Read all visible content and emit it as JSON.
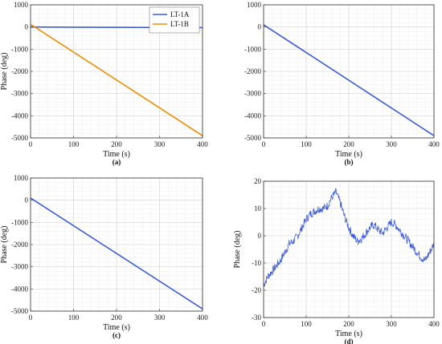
{
  "chart_data": [
    {
      "type": "line",
      "panel_label": "(a)",
      "xlabel": "Time (s)",
      "ylabel": "Phase (deg)",
      "xlim": [
        0,
        400
      ],
      "ylim": [
        -5000,
        1000
      ],
      "xticks": [
        0,
        100,
        200,
        300,
        400
      ],
      "yticks": [
        -5000,
        -4000,
        -3000,
        -2000,
        -1000,
        0,
        1000
      ],
      "grid": true,
      "legend_position": "top-right",
      "series": [
        {
          "name": "LT-1A",
          "color": "#3b5bdb",
          "x": [
            0,
            400
          ],
          "y": [
            0,
            -30
          ]
        },
        {
          "name": "LT-1B",
          "color": "#f08c00",
          "x": [
            0,
            5,
            400
          ],
          "y": [
            100,
            60,
            -4900
          ]
        }
      ]
    },
    {
      "type": "line",
      "panel_label": "(b)",
      "xlabel": "Time (s)",
      "ylabel": "",
      "xlim": [
        0,
        400
      ],
      "ylim": [
        -5000,
        1000
      ],
      "xticks": [
        0,
        100,
        200,
        300,
        400
      ],
      "yticks": [
        -5000,
        -4000,
        -3000,
        -2000,
        -1000,
        0,
        1000
      ],
      "grid": true,
      "series": [
        {
          "color": "#3b5bdb",
          "x": [
            0,
            400
          ],
          "y": [
            100,
            -4900
          ]
        }
      ]
    },
    {
      "type": "line",
      "panel_label": "(c)",
      "xlabel": "Time (s)",
      "ylabel": "Phase (deg)",
      "xlim": [
        0,
        400
      ],
      "ylim": [
        -5000,
        1000
      ],
      "xticks": [
        0,
        100,
        200,
        300,
        400
      ],
      "yticks": [
        -5000,
        -4000,
        -3000,
        -2000,
        -1000,
        0,
        1000
      ],
      "grid": true,
      "series": [
        {
          "color": "#3b5bdb",
          "x": [
            0,
            400
          ],
          "y": [
            100,
            -4900
          ]
        }
      ]
    },
    {
      "type": "line",
      "panel_label": "(d)",
      "xlabel": "Time (s)",
      "ylabel": "Phase (deg)",
      "xlim": [
        0,
        400
      ],
      "ylim": [
        -30,
        20
      ],
      "xticks": [
        0,
        100,
        200,
        300,
        400
      ],
      "yticks": [
        -30,
        -20,
        -10,
        0,
        10,
        20
      ],
      "grid": true,
      "series": [
        {
          "color": "#3b5bdb",
          "x": [
            0,
            10,
            20,
            30,
            40,
            50,
            60,
            70,
            80,
            90,
            100,
            110,
            120,
            130,
            140,
            150,
            160,
            170,
            180,
            190,
            200,
            210,
            220,
            230,
            240,
            250,
            260,
            270,
            280,
            290,
            300,
            310,
            320,
            330,
            340,
            350,
            360,
            370,
            380,
            390,
            400
          ],
          "y": [
            -18,
            -15,
            -13,
            -11,
            -9,
            -6,
            -3,
            -2,
            0,
            3,
            6,
            8,
            9,
            10,
            10,
            11,
            14,
            16,
            12,
            7,
            3,
            0,
            -2,
            -1,
            1,
            3,
            4,
            2,
            1,
            3,
            5,
            4,
            2,
            0,
            -2,
            -4,
            -6,
            -8,
            -9,
            -6,
            -3
          ]
        }
      ]
    }
  ]
}
